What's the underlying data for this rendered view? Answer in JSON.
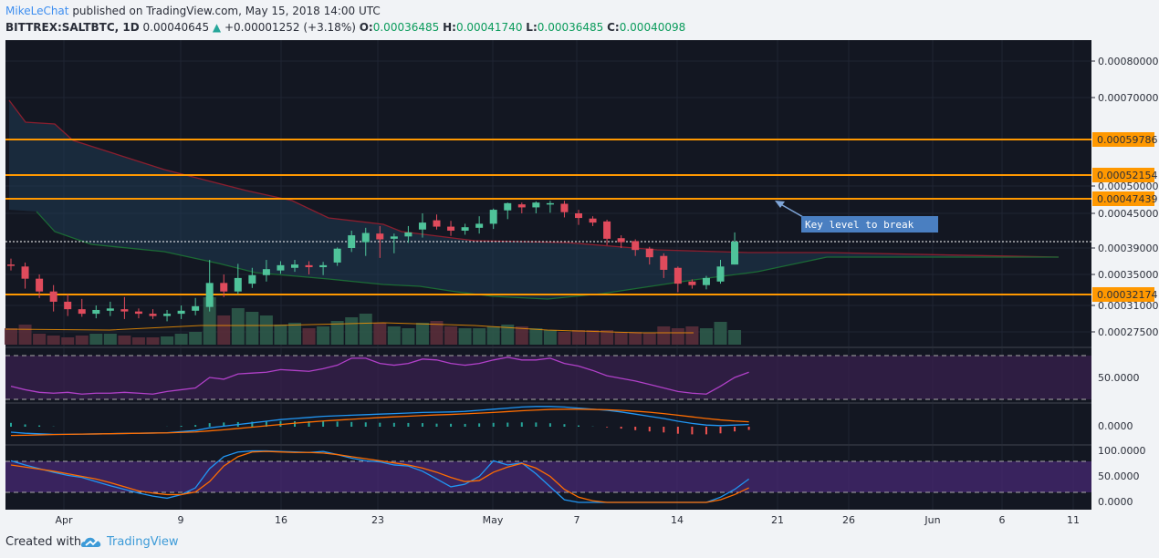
{
  "header": {
    "author": "MikeLeChat",
    "published": " published on TradingView.com, May 15, 2018 14:00 UTC",
    "symbol": "BITTREX:SALTBTC, 1D",
    "last": "0.00040645",
    "arrow": "▲",
    "change": "+0.00001252 (+3.18%)",
    "o_label": "O:",
    "o_value": "0.00036485",
    "h_label": "H:",
    "h_value": "0.00041740",
    "l_label": "L:",
    "l_value": "0.00036485",
    "c_label": "C:",
    "c_value": "0.00040098"
  },
  "footer": {
    "created_with": "Created with",
    "brand": "TradingView"
  },
  "chart_data": [
    {
      "type": "candlestick",
      "price_axis_labels": [
        "0.00080000",
        "0.00070000",
        "0.00050000",
        "0.00045000",
        "0.00039000",
        "0.00035000",
        "0.00031000",
        "0.00027500"
      ],
      "horizontal_levels": [
        {
          "label": "0.00059786",
          "value": 0.00059786,
          "color": "#ff9800"
        },
        {
          "label": "0.00052154",
          "value": 0.00052154,
          "color": "#ff9800"
        },
        {
          "label": "0.00047439",
          "value": 0.00047439,
          "color": "#ff9800"
        },
        {
          "label": "0.00032174",
          "value": 0.00032174,
          "color": "#ff9800"
        }
      ],
      "annotation": "Key level to break",
      "date_labels": [
        "Apr",
        "9",
        "16",
        "23",
        "May",
        "7",
        "14",
        "21",
        "26",
        "Jun",
        "6",
        "11"
      ],
      "candles": [
        {
          "o": 0.000365,
          "h": 0.000374,
          "l": 0.000356,
          "c": 0.000363
        },
        {
          "o": 0.000362,
          "h": 0.000368,
          "l": 0.00033,
          "c": 0.000344
        },
        {
          "o": 0.000344,
          "h": 0.00035,
          "l": 0.000318,
          "c": 0.000326
        },
        {
          "o": 0.000326,
          "h": 0.000335,
          "l": 0.000302,
          "c": 0.000314
        },
        {
          "o": 0.000314,
          "h": 0.000322,
          "l": 0.000296,
          "c": 0.000305
        },
        {
          "o": 0.000305,
          "h": 0.000317,
          "l": 0.000295,
          "c": 0.000299
        },
        {
          "o": 0.000299,
          "h": 0.00031,
          "l": 0.000293,
          "c": 0.000304
        },
        {
          "o": 0.000303,
          "h": 0.000314,
          "l": 0.000296,
          "c": 0.000306
        },
        {
          "o": 0.000305,
          "h": 0.000319,
          "l": 0.000292,
          "c": 0.000302
        },
        {
          "o": 0.000302,
          "h": 0.000306,
          "l": 0.000293,
          "c": 0.000299
        },
        {
          "o": 0.000299,
          "h": 0.000305,
          "l": 0.000292,
          "c": 0.000296
        },
        {
          "o": 0.000296,
          "h": 0.000304,
          "l": 0.000289,
          "c": 0.000299
        },
        {
          "o": 0.000299,
          "h": 0.00031,
          "l": 0.000292,
          "c": 0.000303
        },
        {
          "o": 0.000303,
          "h": 0.000318,
          "l": 0.000297,
          "c": 0.000309
        },
        {
          "o": 0.000308,
          "h": 0.000372,
          "l": 0.000302,
          "c": 0.000338
        },
        {
          "o": 0.000338,
          "h": 0.00035,
          "l": 0.000319,
          "c": 0.000326
        },
        {
          "o": 0.000326,
          "h": 0.000366,
          "l": 0.000322,
          "c": 0.000345
        },
        {
          "o": 0.000337,
          "h": 0.00036,
          "l": 0.000331,
          "c": 0.000349
        },
        {
          "o": 0.000349,
          "h": 0.000372,
          "l": 0.00034,
          "c": 0.000358
        },
        {
          "o": 0.000356,
          "h": 0.00037,
          "l": 0.000351,
          "c": 0.000364
        },
        {
          "o": 0.00036,
          "h": 0.000372,
          "l": 0.000354,
          "c": 0.000365
        },
        {
          "o": 0.000364,
          "h": 0.00037,
          "l": 0.00035,
          "c": 0.000361
        },
        {
          "o": 0.000361,
          "h": 0.000369,
          "l": 0.000349,
          "c": 0.000364
        },
        {
          "o": 0.000368,
          "h": 0.000391,
          "l": 0.000363,
          "c": 0.000389
        },
        {
          "o": 0.00039,
          "h": 0.00042,
          "l": 0.000384,
          "c": 0.000412
        },
        {
          "o": 0.0004,
          "h": 0.000425,
          "l": 0.000378,
          "c": 0.000416
        },
        {
          "o": 0.000415,
          "h": 0.000428,
          "l": 0.000375,
          "c": 0.000405
        },
        {
          "o": 0.000406,
          "h": 0.000415,
          "l": 0.000382,
          "c": 0.00041
        },
        {
          "o": 0.00041,
          "h": 0.000428,
          "l": 0.000399,
          "c": 0.000417
        },
        {
          "o": 0.000422,
          "h": 0.00045,
          "l": 0.000408,
          "c": 0.000434
        },
        {
          "o": 0.000438,
          "h": 0.000448,
          "l": 0.000422,
          "c": 0.000427
        },
        {
          "o": 0.000427,
          "h": 0.000437,
          "l": 0.000411,
          "c": 0.00042
        },
        {
          "o": 0.00042,
          "h": 0.000432,
          "l": 0.000413,
          "c": 0.000426
        },
        {
          "o": 0.000425,
          "h": 0.000445,
          "l": 0.000415,
          "c": 0.000432
        },
        {
          "o": 0.000432,
          "h": 0.000458,
          "l": 0.000423,
          "c": 0.000456
        },
        {
          "o": 0.000455,
          "h": 0.000468,
          "l": 0.00044,
          "c": 0.000467
        },
        {
          "o": 0.000465,
          "h": 0.000468,
          "l": 0.00045,
          "c": 0.00046
        },
        {
          "o": 0.00046,
          "h": 0.00047,
          "l": 0.00045,
          "c": 0.000468
        },
        {
          "o": 0.000466,
          "h": 0.000471,
          "l": 0.000451,
          "c": 0.000467
        },
        {
          "o": 0.000466,
          "h": 0.000471,
          "l": 0.000443,
          "c": 0.000452
        },
        {
          "o": 0.00045,
          "h": 0.000456,
          "l": 0.00043,
          "c": 0.000442
        },
        {
          "o": 0.000441,
          "h": 0.000445,
          "l": 0.000428,
          "c": 0.000434
        },
        {
          "o": 0.000436,
          "h": 0.000439,
          "l": 0.000395,
          "c": 0.000406
        },
        {
          "o": 0.000407,
          "h": 0.000412,
          "l": 0.00039,
          "c": 0.0004
        },
        {
          "o": 0.000402,
          "h": 0.000405,
          "l": 0.000378,
          "c": 0.000387
        },
        {
          "o": 0.000389,
          "h": 0.000392,
          "l": 0.000365,
          "c": 0.000376
        },
        {
          "o": 0.000378,
          "h": 0.000382,
          "l": 0.000345,
          "c": 0.000357
        },
        {
          "o": 0.00036,
          "h": 0.000362,
          "l": 0.000325,
          "c": 0.000337
        },
        {
          "o": 0.00034,
          "h": 0.000343,
          "l": 0.00033,
          "c": 0.000335
        },
        {
          "o": 0.000335,
          "h": 0.000348,
          "l": 0.000329,
          "c": 0.000345
        },
        {
          "o": 0.00034,
          "h": 0.000372,
          "l": 0.000337,
          "c": 0.000362
        },
        {
          "o": 0.000365,
          "h": 0.000417,
          "l": 0.000365,
          "c": 0.000401
        }
      ]
    },
    {
      "type": "line",
      "panel": "RSI",
      "axis_labels": [
        "50.0000"
      ],
      "values": [
        40,
        36,
        33,
        32,
        33,
        31,
        32,
        32,
        33,
        32,
        31,
        34,
        36,
        38,
        50,
        48,
        54,
        55,
        56,
        59,
        58,
        57,
        60,
        64,
        72,
        72,
        66,
        64,
        66,
        71,
        70,
        66,
        64,
        66,
        70,
        73,
        70,
        70,
        72,
        66,
        63,
        58,
        52,
        49,
        46,
        42,
        38,
        34,
        32,
        31,
        40,
        50,
        56
      ]
    },
    {
      "type": "line",
      "panel": "MACD",
      "axis_labels": [
        "0.0000"
      ],
      "series": [
        {
          "color": "#2196f3",
          "values": [
            -0.5,
            -0.6,
            -0.65,
            -0.7,
            -0.7,
            -0.68,
            -0.66,
            -0.64,
            -0.62,
            -0.6,
            -0.58,
            -0.55,
            -0.45,
            -0.35,
            -0.1,
            0.05,
            0.2,
            0.35,
            0.5,
            0.65,
            0.75,
            0.85,
            0.95,
            1.0,
            1.05,
            1.1,
            1.15,
            1.2,
            1.25,
            1.3,
            1.32,
            1.35,
            1.4,
            1.5,
            1.6,
            1.7,
            1.8,
            1.85,
            1.85,
            1.8,
            1.7,
            1.6,
            1.5,
            1.35,
            1.15,
            0.95,
            0.75,
            0.5,
            0.3,
            0.15,
            0.1,
            0.15,
            0.2
          ]
        },
        {
          "color": "#ff6d00",
          "values": [
            -0.8,
            -0.78,
            -0.75,
            -0.72,
            -0.7,
            -0.68,
            -0.66,
            -0.64,
            -0.62,
            -0.6,
            -0.58,
            -0.56,
            -0.52,
            -0.48,
            -0.38,
            -0.28,
            -0.16,
            -0.04,
            0.08,
            0.2,
            0.32,
            0.42,
            0.52,
            0.6,
            0.68,
            0.76,
            0.84,
            0.9,
            0.96,
            1.02,
            1.08,
            1.12,
            1.18,
            1.24,
            1.3,
            1.38,
            1.46,
            1.52,
            1.58,
            1.6,
            1.6,
            1.58,
            1.55,
            1.5,
            1.42,
            1.32,
            1.2,
            1.05,
            0.9,
            0.75,
            0.62,
            0.52,
            0.45
          ]
        }
      ]
    },
    {
      "type": "line",
      "panel": "Stochastic",
      "axis_labels": [
        "100.0000",
        "50.0000",
        "0.0000"
      ],
      "series": [
        {
          "color": "#2196f3",
          "values": [
            80,
            72,
            65,
            58,
            52,
            48,
            40,
            32,
            25,
            18,
            12,
            8,
            15,
            28,
            65,
            88,
            97,
            99,
            99,
            98,
            97,
            96,
            98,
            92,
            85,
            80,
            78,
            72,
            70,
            60,
            45,
            30,
            35,
            50,
            80,
            72,
            76,
            55,
            30,
            5,
            0,
            0,
            0,
            0,
            0,
            0,
            0,
            0,
            0,
            0,
            10,
            25,
            45
          ]
        },
        {
          "color": "#ff6d00",
          "values": [
            72,
            68,
            64,
            60,
            55,
            50,
            45,
            38,
            30,
            22,
            18,
            15,
            15,
            20,
            40,
            70,
            88,
            97,
            98,
            97,
            96,
            96,
            95,
            92,
            88,
            84,
            80,
            76,
            72,
            66,
            58,
            48,
            40,
            42,
            58,
            68,
            75,
            66,
            50,
            25,
            10,
            3,
            0,
            0,
            0,
            0,
            0,
            0,
            0,
            0,
            5,
            15,
            28
          ]
        }
      ]
    }
  ]
}
